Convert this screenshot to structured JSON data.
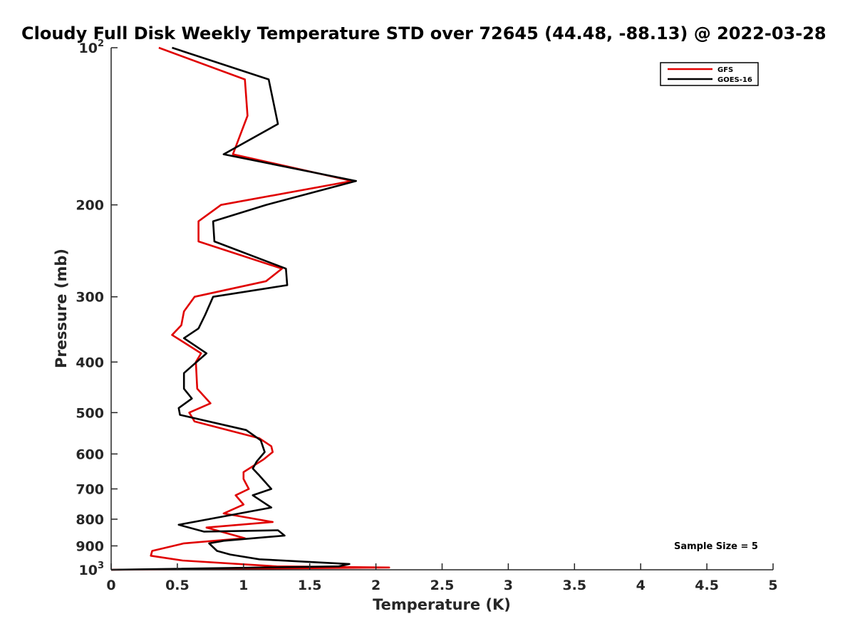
{
  "chart_data": {
    "type": "line",
    "title": "Cloudy Full Disk Weekly Temperature STD over 72645 (44.48, -88.13) @ 2022-03-28",
    "xlabel": "Temperature (K)",
    "ylabel": "Pressure (mb)",
    "xlim": [
      0,
      5
    ],
    "ylim": [
      100,
      1000
    ],
    "y_scale": "log",
    "y_reversed": true,
    "grid": false,
    "legend_position": "top-right",
    "x_ticks": [
      0,
      0.5,
      1,
      1.5,
      2,
      2.5,
      3,
      3.5,
      4,
      4.5,
      5
    ],
    "x_tick_labels": [
      "0",
      "0.5",
      "1",
      "1.5",
      "2",
      "2.5",
      "3",
      "3.5",
      "4",
      "4.5",
      "5"
    ],
    "y_ticks": [
      {
        "value": 100,
        "base": "10",
        "exp": "2"
      },
      {
        "value": 200,
        "label": "200"
      },
      {
        "value": 300,
        "label": "300"
      },
      {
        "value": 400,
        "label": "400"
      },
      {
        "value": 500,
        "label": "500"
      },
      {
        "value": 600,
        "label": "600"
      },
      {
        "value": 700,
        "label": "700"
      },
      {
        "value": 800,
        "label": "800"
      },
      {
        "value": 900,
        "label": "900"
      },
      {
        "value": 1000,
        "base": "10",
        "exp": "3"
      }
    ],
    "annotation": "Sample Size = 5",
    "series": [
      {
        "name": "GFS",
        "color": "#e00000",
        "points": [
          [
            0.36,
            100
          ],
          [
            1.01,
            115
          ],
          [
            1.03,
            135
          ],
          [
            0.92,
            160
          ],
          [
            1.82,
            180
          ],
          [
            0.83,
            200
          ],
          [
            0.66,
            215
          ],
          [
            0.66,
            235
          ],
          [
            1.29,
            265
          ],
          [
            1.17,
            280
          ],
          [
            0.63,
            300
          ],
          [
            0.55,
            320
          ],
          [
            0.53,
            340
          ],
          [
            0.46,
            355
          ],
          [
            0.68,
            385
          ],
          [
            0.64,
            400
          ],
          [
            0.65,
            450
          ],
          [
            0.75,
            480
          ],
          [
            0.59,
            500
          ],
          [
            0.63,
            520
          ],
          [
            1.12,
            560
          ],
          [
            1.21,
            580
          ],
          [
            1.22,
            595
          ],
          [
            1.15,
            615
          ],
          [
            1.0,
            650
          ],
          [
            1.0,
            670
          ],
          [
            1.04,
            700
          ],
          [
            0.94,
            720
          ],
          [
            1.0,
            750
          ],
          [
            0.85,
            780
          ],
          [
            1.22,
            810
          ],
          [
            0.72,
            830
          ],
          [
            1.01,
            870
          ],
          [
            0.55,
            890
          ],
          [
            0.31,
            920
          ],
          [
            0.3,
            940
          ],
          [
            0.54,
            960
          ],
          [
            1.25,
            985
          ],
          [
            2.1,
            990
          ],
          [
            0.0,
            1000
          ]
        ]
      },
      {
        "name": "GOES-16",
        "color": "#000000",
        "points": [
          [
            0.46,
            100
          ],
          [
            1.19,
            115
          ],
          [
            1.26,
            140
          ],
          [
            0.85,
            160
          ],
          [
            1.85,
            180
          ],
          [
            1.17,
            200
          ],
          [
            0.77,
            215
          ],
          [
            0.78,
            235
          ],
          [
            1.32,
            265
          ],
          [
            1.33,
            285
          ],
          [
            0.77,
            300
          ],
          [
            0.71,
            325
          ],
          [
            0.66,
            345
          ],
          [
            0.55,
            360
          ],
          [
            0.72,
            385
          ],
          [
            0.55,
            420
          ],
          [
            0.55,
            450
          ],
          [
            0.61,
            470
          ],
          [
            0.51,
            490
          ],
          [
            0.52,
            505
          ],
          [
            1.02,
            540
          ],
          [
            1.13,
            565
          ],
          [
            1.16,
            595
          ],
          [
            1.1,
            620
          ],
          [
            1.07,
            640
          ],
          [
            1.12,
            660
          ],
          [
            1.21,
            700
          ],
          [
            1.07,
            720
          ],
          [
            1.14,
            740
          ],
          [
            1.21,
            760
          ],
          [
            0.51,
            820
          ],
          [
            0.7,
            845
          ],
          [
            1.26,
            840
          ],
          [
            1.31,
            860
          ],
          [
            0.85,
            880
          ],
          [
            0.74,
            890
          ],
          [
            0.8,
            920
          ],
          [
            0.9,
            935
          ],
          [
            1.12,
            955
          ],
          [
            1.8,
            975
          ],
          [
            1.72,
            985
          ],
          [
            0.0,
            1000
          ]
        ]
      }
    ]
  }
}
